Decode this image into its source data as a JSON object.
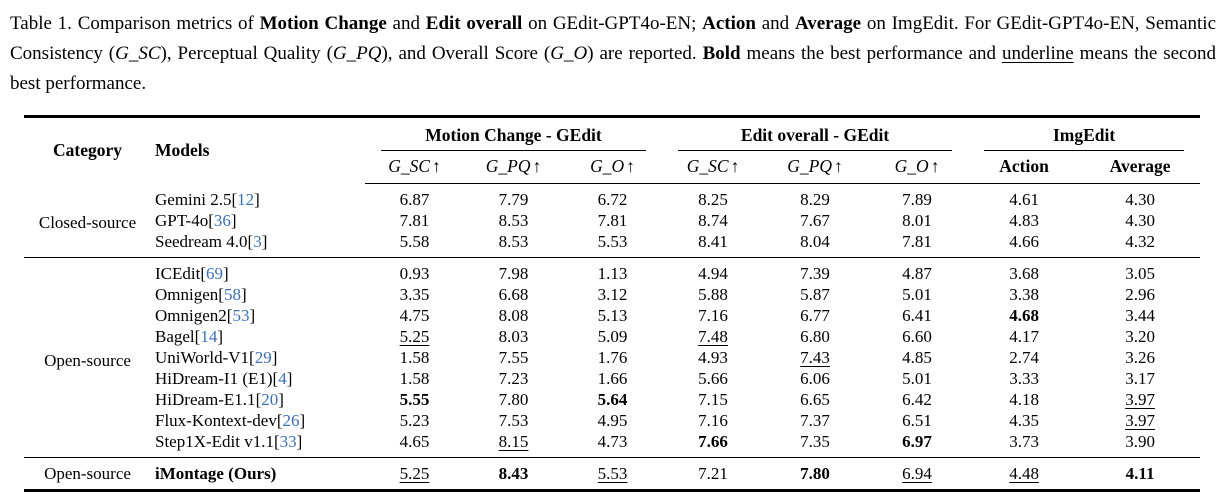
{
  "colors": {
    "citation_blue": "#3c70b4",
    "text": "#000000",
    "background": "#ffffff"
  },
  "caption": {
    "segments": [
      {
        "t": "Table 1.  Comparison metrics of "
      },
      {
        "t": "Motion Change",
        "b": true
      },
      {
        "t": " and "
      },
      {
        "t": "Edit overall",
        "b": true
      },
      {
        "t": " on GEdit-GPT4o-EN; "
      },
      {
        "t": "Action",
        "b": true
      },
      {
        "t": " and "
      },
      {
        "t": "Average",
        "b": true
      },
      {
        "t": " on ImgEdit.  For GEdit-GPT4o-EN, Semantic Consistency ("
      },
      {
        "t": "G_SC",
        "i": true
      },
      {
        "t": "), Perceptual Quality ("
      },
      {
        "t": "G_PQ",
        "i": true
      },
      {
        "t": "), and Overall Score ("
      },
      {
        "t": "G_O",
        "i": true
      },
      {
        "t": ") are reported.  "
      },
      {
        "t": "Bold",
        "b": true
      },
      {
        "t": " means the best performance and "
      },
      {
        "t": "underline",
        "u": true
      },
      {
        "t": " means the second best performance."
      }
    ]
  },
  "table": {
    "category_header": "Category",
    "models_header": "Models",
    "groups": [
      {
        "label": "Motion Change - GEdit",
        "span": 3
      },
      {
        "label": "Edit overall - GEdit",
        "span": 3
      },
      {
        "label": "ImgEdit",
        "span": 2
      }
    ],
    "sub_headers": [
      {
        "math": "G_SC",
        "arrow": "↑"
      },
      {
        "math": "G_PQ",
        "arrow": "↑"
      },
      {
        "math": "G_O",
        "arrow": "↑"
      },
      {
        "math": "G_SC",
        "arrow": "↑"
      },
      {
        "math": "G_PQ",
        "arrow": "↑"
      },
      {
        "math": "G_O",
        "arrow": "↑"
      },
      {
        "label": "Action"
      },
      {
        "label": "Average"
      }
    ],
    "sections": [
      {
        "id": "closed-source",
        "category": "Closed-source",
        "rows": [
          {
            "model": "Gemini 2.5",
            "cite": "12",
            "values": [
              "6.87",
              "7.79",
              "6.72",
              "8.25",
              "8.29",
              "7.89",
              "4.61",
              "4.30"
            ]
          },
          {
            "model": "GPT-4o",
            "cite": "36",
            "values": [
              "7.81",
              "8.53",
              "7.81",
              "8.74",
              "7.67",
              "8.01",
              "4.83",
              "4.30"
            ]
          },
          {
            "model": "Seedream 4.0",
            "cite": "3",
            "values": [
              "5.58",
              "8.53",
              "5.53",
              "8.41",
              "8.04",
              "7.81",
              "4.66",
              "4.32"
            ]
          }
        ]
      },
      {
        "id": "open-source",
        "category": "Open-source",
        "rows": [
          {
            "model": "ICEdit",
            "cite": "69",
            "values": [
              "0.93",
              "7.98",
              "1.13",
              "4.94",
              "7.39",
              "4.87",
              "3.68",
              "3.05"
            ]
          },
          {
            "model": "Omnigen",
            "cite": "58",
            "values": [
              "3.35",
              "6.68",
              "3.12",
              "5.88",
              "5.87",
              "5.01",
              "3.38",
              "2.96"
            ]
          },
          {
            "model": "Omnigen2",
            "cite": "53",
            "values": [
              "4.75",
              "8.08",
              "5.13",
              "7.16",
              "6.77",
              "6.41",
              "b:4.68",
              "3.44"
            ]
          },
          {
            "model": "Bagel",
            "cite": "14",
            "values": [
              "u:5.25",
              "8.03",
              "5.09",
              "u:7.48",
              "6.80",
              "6.60",
              "4.17",
              "3.20"
            ]
          },
          {
            "model": "UniWorld-V1",
            "cite": "29",
            "values": [
              "1.58",
              "7.55",
              "1.76",
              "4.93",
              "u:7.43",
              "4.85",
              "2.74",
              "3.26"
            ]
          },
          {
            "model": "HiDream-I1 (E1)",
            "cite": "4",
            "values": [
              "1.58",
              "7.23",
              "1.66",
              "5.66",
              "6.06",
              "5.01",
              "3.33",
              "3.17"
            ]
          },
          {
            "model": "HiDream-E1.1",
            "cite": "20",
            "values": [
              "b:5.55",
              "7.80",
              "b:5.64",
              "7.15",
              "6.65",
              "6.42",
              "4.18",
              "u:3.97"
            ]
          },
          {
            "model": "Flux-Kontext-dev",
            "cite": "26",
            "values": [
              "5.23",
              "7.53",
              "4.95",
              "7.16",
              "7.37",
              "6.51",
              "4.35",
              "u:3.97"
            ]
          },
          {
            "model": "Step1X-Edit v1.1",
            "cite": "33",
            "values": [
              "4.65",
              "u:8.15",
              "4.73",
              "b:7.66",
              "7.35",
              "b:6.97",
              "3.73",
              "3.90"
            ]
          }
        ]
      },
      {
        "id": "ours",
        "category": "Open-source",
        "ours": true,
        "rows": [
          {
            "model": "iMontage (Ours)",
            "bold": true,
            "values": [
              "u:5.25",
              "b:8.43",
              "u:5.53",
              "7.21",
              "b:7.80",
              "u:6.94",
              "u:4.48",
              "b:4.11"
            ]
          }
        ]
      }
    ]
  }
}
